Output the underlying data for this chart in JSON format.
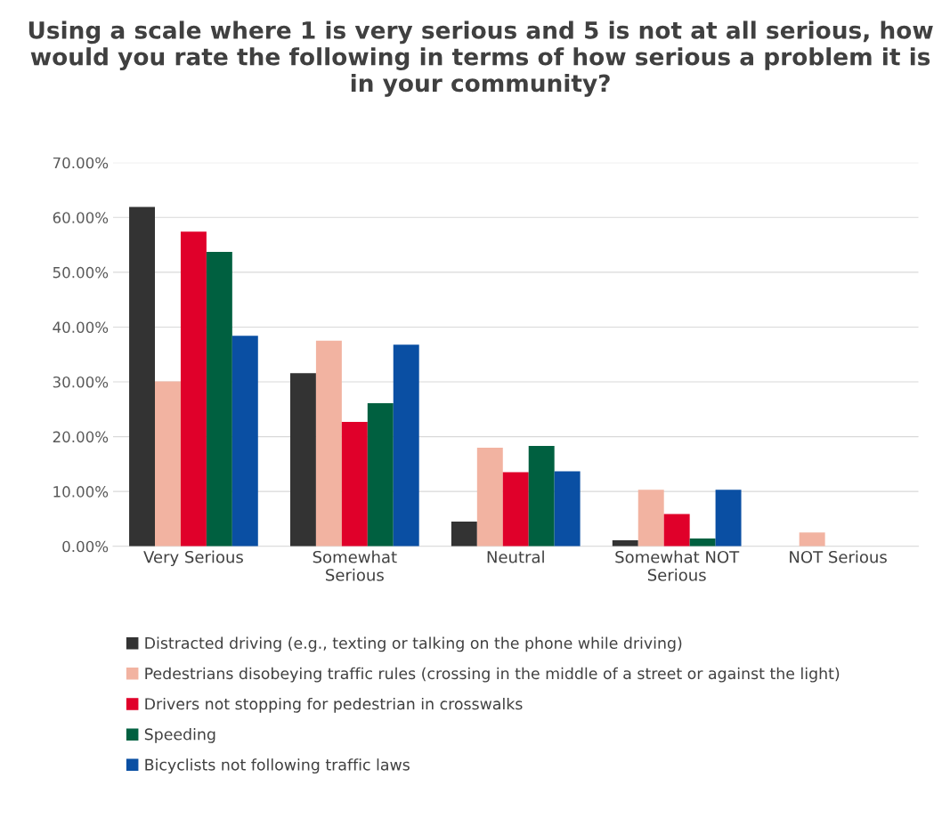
{
  "chart_data": {
    "type": "bar",
    "title": "Using a scale where 1 is very serious and 5 is not at all serious, how would you rate the following in terms of how serious a problem it is in your community?",
    "categories": [
      "Very Serious",
      "Somewhat\nSerious",
      "Neutral",
      "Somewhat NOT\nSerious",
      "NOT Serious"
    ],
    "series": [
      {
        "name": "Distracted driving (e.g., texting or talking on the phone while driving)",
        "color": "#333333",
        "values": [
          61.9,
          31.6,
          4.5,
          1.1,
          0
        ]
      },
      {
        "name": "Pedestrians disobeying traffic rules (crossing in the middle of a street or against the light)",
        "color": "#f2b3a1",
        "values": [
          30.1,
          37.5,
          18.0,
          10.3,
          2.5
        ]
      },
      {
        "name": "Drivers not stopping for pedestrian in crosswalks",
        "color": "#e0002a",
        "values": [
          57.4,
          22.7,
          13.5,
          5.9,
          0
        ]
      },
      {
        "name": "Speeding",
        "color": "#006040",
        "values": [
          53.7,
          26.1,
          18.3,
          1.4,
          0
        ]
      },
      {
        "name": "Bicyclists not following traffic laws",
        "color": "#0a4fa3",
        "values": [
          38.4,
          36.8,
          13.7,
          10.3,
          0
        ]
      }
    ],
    "ylim": [
      0,
      70
    ],
    "yticks": [
      {
        "value": 0,
        "label": "0.00%"
      },
      {
        "value": 10,
        "label": "10.00%"
      },
      {
        "value": 20,
        "label": "20.00%"
      },
      {
        "value": 30,
        "label": "30.00%"
      },
      {
        "value": 40,
        "label": "40.00%"
      },
      {
        "value": 50,
        "label": "50.00%"
      },
      {
        "value": 60,
        "label": "60.00%"
      },
      {
        "value": 70,
        "label": "70.00%"
      }
    ],
    "grid": "y",
    "legend": "bottom"
  }
}
